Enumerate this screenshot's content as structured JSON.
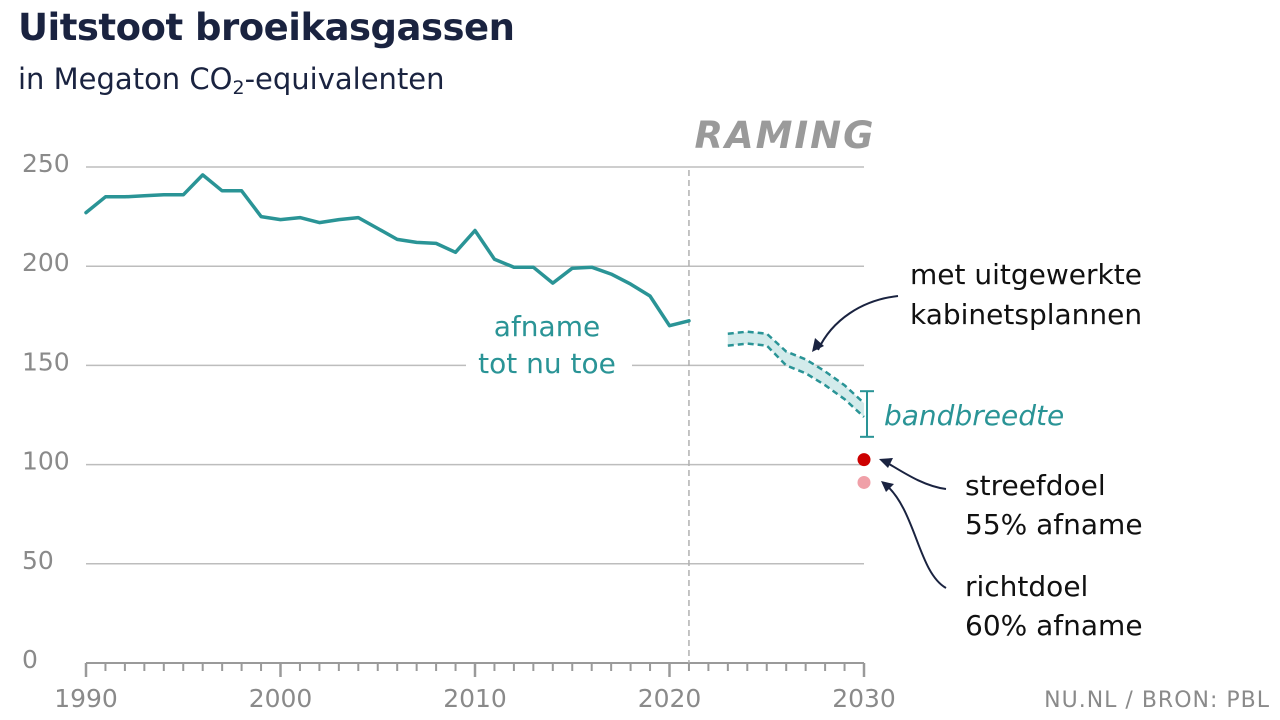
{
  "header": {
    "title": "Uitstoot broeikasgassen",
    "subtitle_pre": "in Megaton CO",
    "subtitle_sub": "2",
    "subtitle_post": "-equivalenten"
  },
  "source": "NU.NL / BRON: PBL",
  "colors": {
    "series": "#2a9496",
    "band": "#d3ebeb",
    "streefdoel": "#cc0000",
    "richtdoel": "#f0a0a8",
    "text_dark": "#1a2340"
  },
  "chart_data": {
    "type": "line",
    "title": "Uitstoot broeikasgassen",
    "subtitle": "in Megaton CO2-equivalenten",
    "xlim": [
      1990,
      2030
    ],
    "ylim": [
      0,
      250
    ],
    "grid": true,
    "x_ticks": [
      1990,
      2000,
      2010,
      2020,
      2030
    ],
    "y_ticks": [
      0,
      50,
      100,
      150,
      200,
      250
    ],
    "series": [
      {
        "x": [
          1990,
          1991,
          1992,
          1993,
          1994,
          1995,
          1996,
          1997,
          1998,
          1999,
          2000,
          2001,
          2002,
          2003,
          2004,
          2005,
          2006,
          2007,
          2008,
          2009,
          2010,
          2011,
          2012,
          2013,
          2014,
          2015,
          2016,
          2017,
          2018,
          2019,
          2020,
          2021
        ],
        "values": [
          227,
          235,
          235,
          235.5,
          236,
          236,
          246,
          238,
          238,
          225,
          223.5,
          224.5,
          222,
          223.5,
          224.5,
          219,
          213.5,
          212,
          211.5,
          207,
          218,
          203.5,
          199.5,
          199.5,
          191.5,
          199,
          199.5,
          196,
          191,
          185,
          170,
          172.5
        ]
      }
    ],
    "projection": {
      "label": "RAMING",
      "start_x": 2021,
      "band": {
        "x": [
          2023,
          2024,
          2025,
          2026,
          2027,
          2028,
          2029,
          2030
        ],
        "upper": [
          166,
          167,
          166,
          157,
          153,
          147,
          140,
          131
        ],
        "lower": [
          160,
          161,
          160,
          150,
          146,
          140,
          133,
          124
        ]
      }
    },
    "bandwidth": {
      "label": "bandbreedte",
      "x": 2030,
      "upper": 137,
      "lower": 114
    },
    "targets": [
      {
        "label_line1": "streefdoel",
        "label_line2": "55% afname",
        "x": 2030,
        "value": 102.5
      },
      {
        "label_line1": "richtdoel",
        "label_line2": "60% afname",
        "x": 2030,
        "value": 91
      }
    ],
    "annotations": {
      "history_line1": "afname",
      "history_line2": "tot nu toe",
      "plans_line1": "met uitgewerkte",
      "plans_line2": "kabinetsplannen"
    }
  }
}
